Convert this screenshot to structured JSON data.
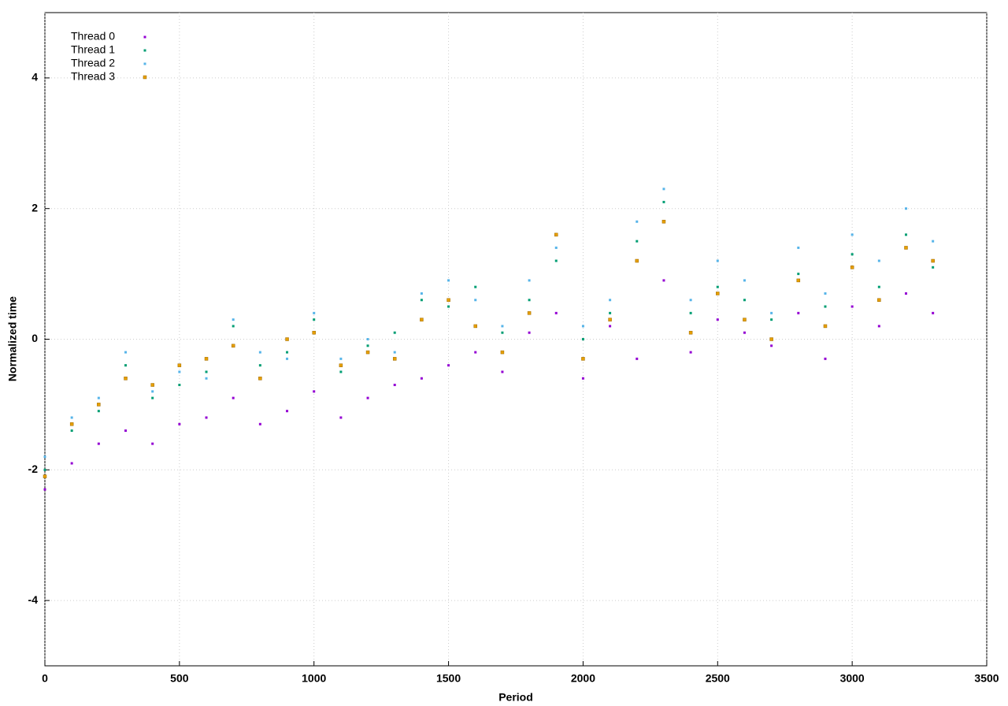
{
  "chart_data": {
    "type": "scatter",
    "x_label": "Period",
    "y_label": "Normalized time",
    "x": [
      0,
      100,
      200,
      300,
      400,
      500,
      600,
      700,
      800,
      900,
      1000,
      1100,
      1200,
      1300,
      1400,
      1500,
      1600,
      1700,
      1800,
      1900,
      2000,
      2100,
      2200,
      2300,
      2400,
      2500,
      2600,
      2700,
      2800,
      2900,
      3000,
      3100,
      3200,
      3300
    ],
    "series": [
      {
        "name": "Thread 0",
        "color": "#9400d3",
        "values": [
          -2.3,
          -1.9,
          -1.6,
          -1.4,
          -1.6,
          -1.3,
          -1.2,
          -0.9,
          -1.3,
          -1.1,
          -0.8,
          -1.2,
          -0.9,
          -0.7,
          -0.6,
          -0.4,
          -0.2,
          -0.5,
          0.1,
          0.4,
          -0.6,
          0.2,
          -0.3,
          0.9,
          -0.2,
          0.3,
          0.1,
          -0.1,
          0.4,
          -0.3,
          0.5,
          0.2,
          0.7,
          0.4
        ]
      },
      {
        "name": "Thread 1",
        "color": "#009e73",
        "values": [
          -2.0,
          -1.4,
          -1.1,
          -0.4,
          -0.9,
          -0.7,
          -0.5,
          0.2,
          -0.4,
          -0.2,
          0.3,
          -0.5,
          -0.1,
          0.1,
          0.6,
          0.5,
          0.8,
          0.1,
          0.6,
          1.2,
          0.0,
          0.4,
          1.5,
          2.1,
          0.4,
          0.8,
          0.6,
          0.3,
          1.0,
          0.5,
          1.3,
          0.8,
          1.6,
          1.1
        ]
      },
      {
        "name": "Thread 2",
        "color": "#56b4e9",
        "values": [
          -1.8,
          -1.2,
          -0.9,
          -0.2,
          -0.8,
          -0.5,
          -0.6,
          0.3,
          -0.2,
          -0.3,
          0.4,
          -0.3,
          0.0,
          -0.2,
          0.7,
          0.9,
          0.6,
          0.2,
          0.9,
          1.4,
          0.2,
          0.6,
          1.8,
          2.3,
          0.6,
          1.2,
          0.9,
          0.4,
          1.4,
          0.7,
          1.6,
          1.2,
          2.0,
          1.5
        ]
      },
      {
        "name": "Thread 3",
        "color": "#e69f00",
        "values": [
          -2.1,
          -1.3,
          -1.0,
          -0.6,
          -0.7,
          -0.4,
          -0.3,
          -0.1,
          -0.6,
          0.0,
          0.1,
          -0.4,
          -0.2,
          -0.3,
          0.3,
          0.6,
          0.2,
          -0.2,
          0.4,
          1.6,
          -0.3,
          0.3,
          1.2,
          1.8,
          0.1,
          0.7,
          0.3,
          0.0,
          0.9,
          0.2,
          1.1,
          0.6,
          1.4,
          1.2
        ]
      }
    ],
    "xlim": [
      0,
      3500
    ],
    "xticks": [
      0,
      500,
      1000,
      1500,
      2000,
      2500,
      3000,
      3500
    ],
    "ylim": [
      -5,
      5
    ],
    "yticks": [
      -4,
      -2,
      0,
      2,
      4
    ],
    "grid": true,
    "legend": "top-left"
  }
}
